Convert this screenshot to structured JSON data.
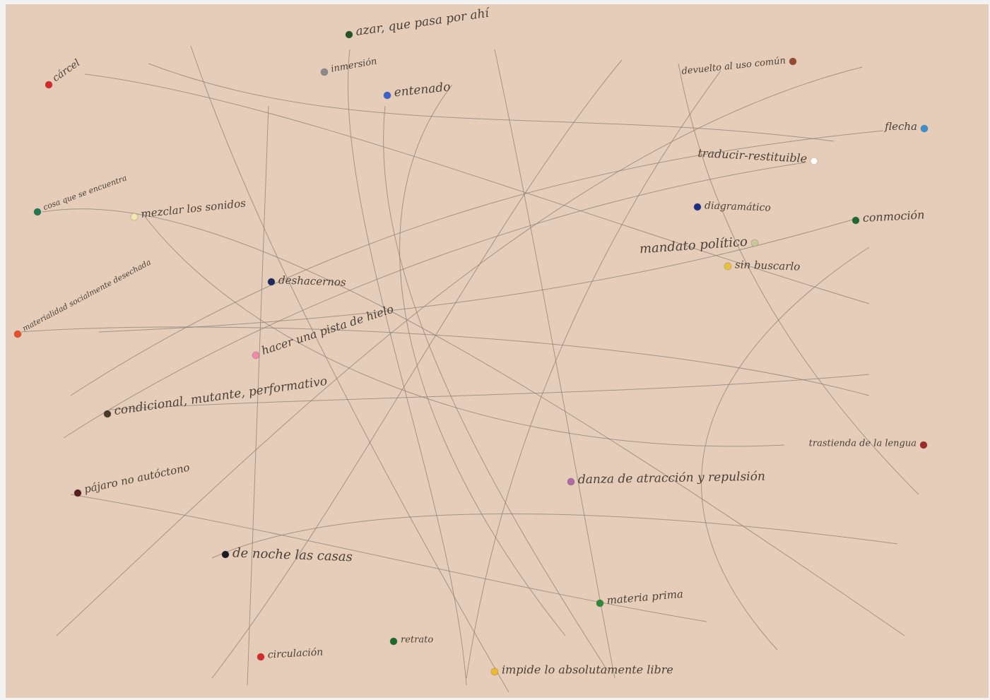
{
  "nodes": [
    {
      "label": "cárcel",
      "color": "#d8282a"
    },
    {
      "label": "azar, que pasa por ahí",
      "color": "#24552a"
    },
    {
      "label": "inmersión",
      "color": "#8a8a8a"
    },
    {
      "label": "entenado",
      "color": "#3a5fcf"
    },
    {
      "label": "devuelto al uso común",
      "color": "#9a4a32"
    },
    {
      "label": "flecha",
      "color": "#3a8fd0"
    },
    {
      "label": "traducir-restituible",
      "color": "#ffffff"
    },
    {
      "label": "cosa que se encuentra",
      "color": "#1f7a52"
    },
    {
      "label": "mezclar los sonidos",
      "color": "#f4e6b0"
    },
    {
      "label": "diagramático",
      "color": "#1e2f8a"
    },
    {
      "label": "conmoción",
      "color": "#1f6a32"
    },
    {
      "label": "mandato político",
      "color": "#c9c89a"
    },
    {
      "label": "sin buscarlo",
      "color": "#e8c33a"
    },
    {
      "label": "materialidad socialmente desechada",
      "color": "#e8502a"
    },
    {
      "label": "deshacernos",
      "color": "#1f2a5e"
    },
    {
      "label": "hacer una pista de hielo",
      "color": "#ef8aa8"
    },
    {
      "label": "condicional, mutante, performativo",
      "color": "#4a3a2a"
    },
    {
      "label": "trastienda de la lengua",
      "color": "#a02a2a"
    },
    {
      "label": "pájaro no autóctono",
      "color": "#5a1e22"
    },
    {
      "label": "danza de atracción y repulsión",
      "color": "#b06aa8"
    },
    {
      "label": "de noche las casas",
      "color": "#1a1a22"
    },
    {
      "label": "materia prima",
      "color": "#2a8a3a"
    },
    {
      "label": "retrato",
      "color": "#1e6a2a"
    },
    {
      "label": "circulación",
      "color": "#d82a2a"
    },
    {
      "label": "impide lo absolutamente libre",
      "color": "#f0b830"
    }
  ]
}
